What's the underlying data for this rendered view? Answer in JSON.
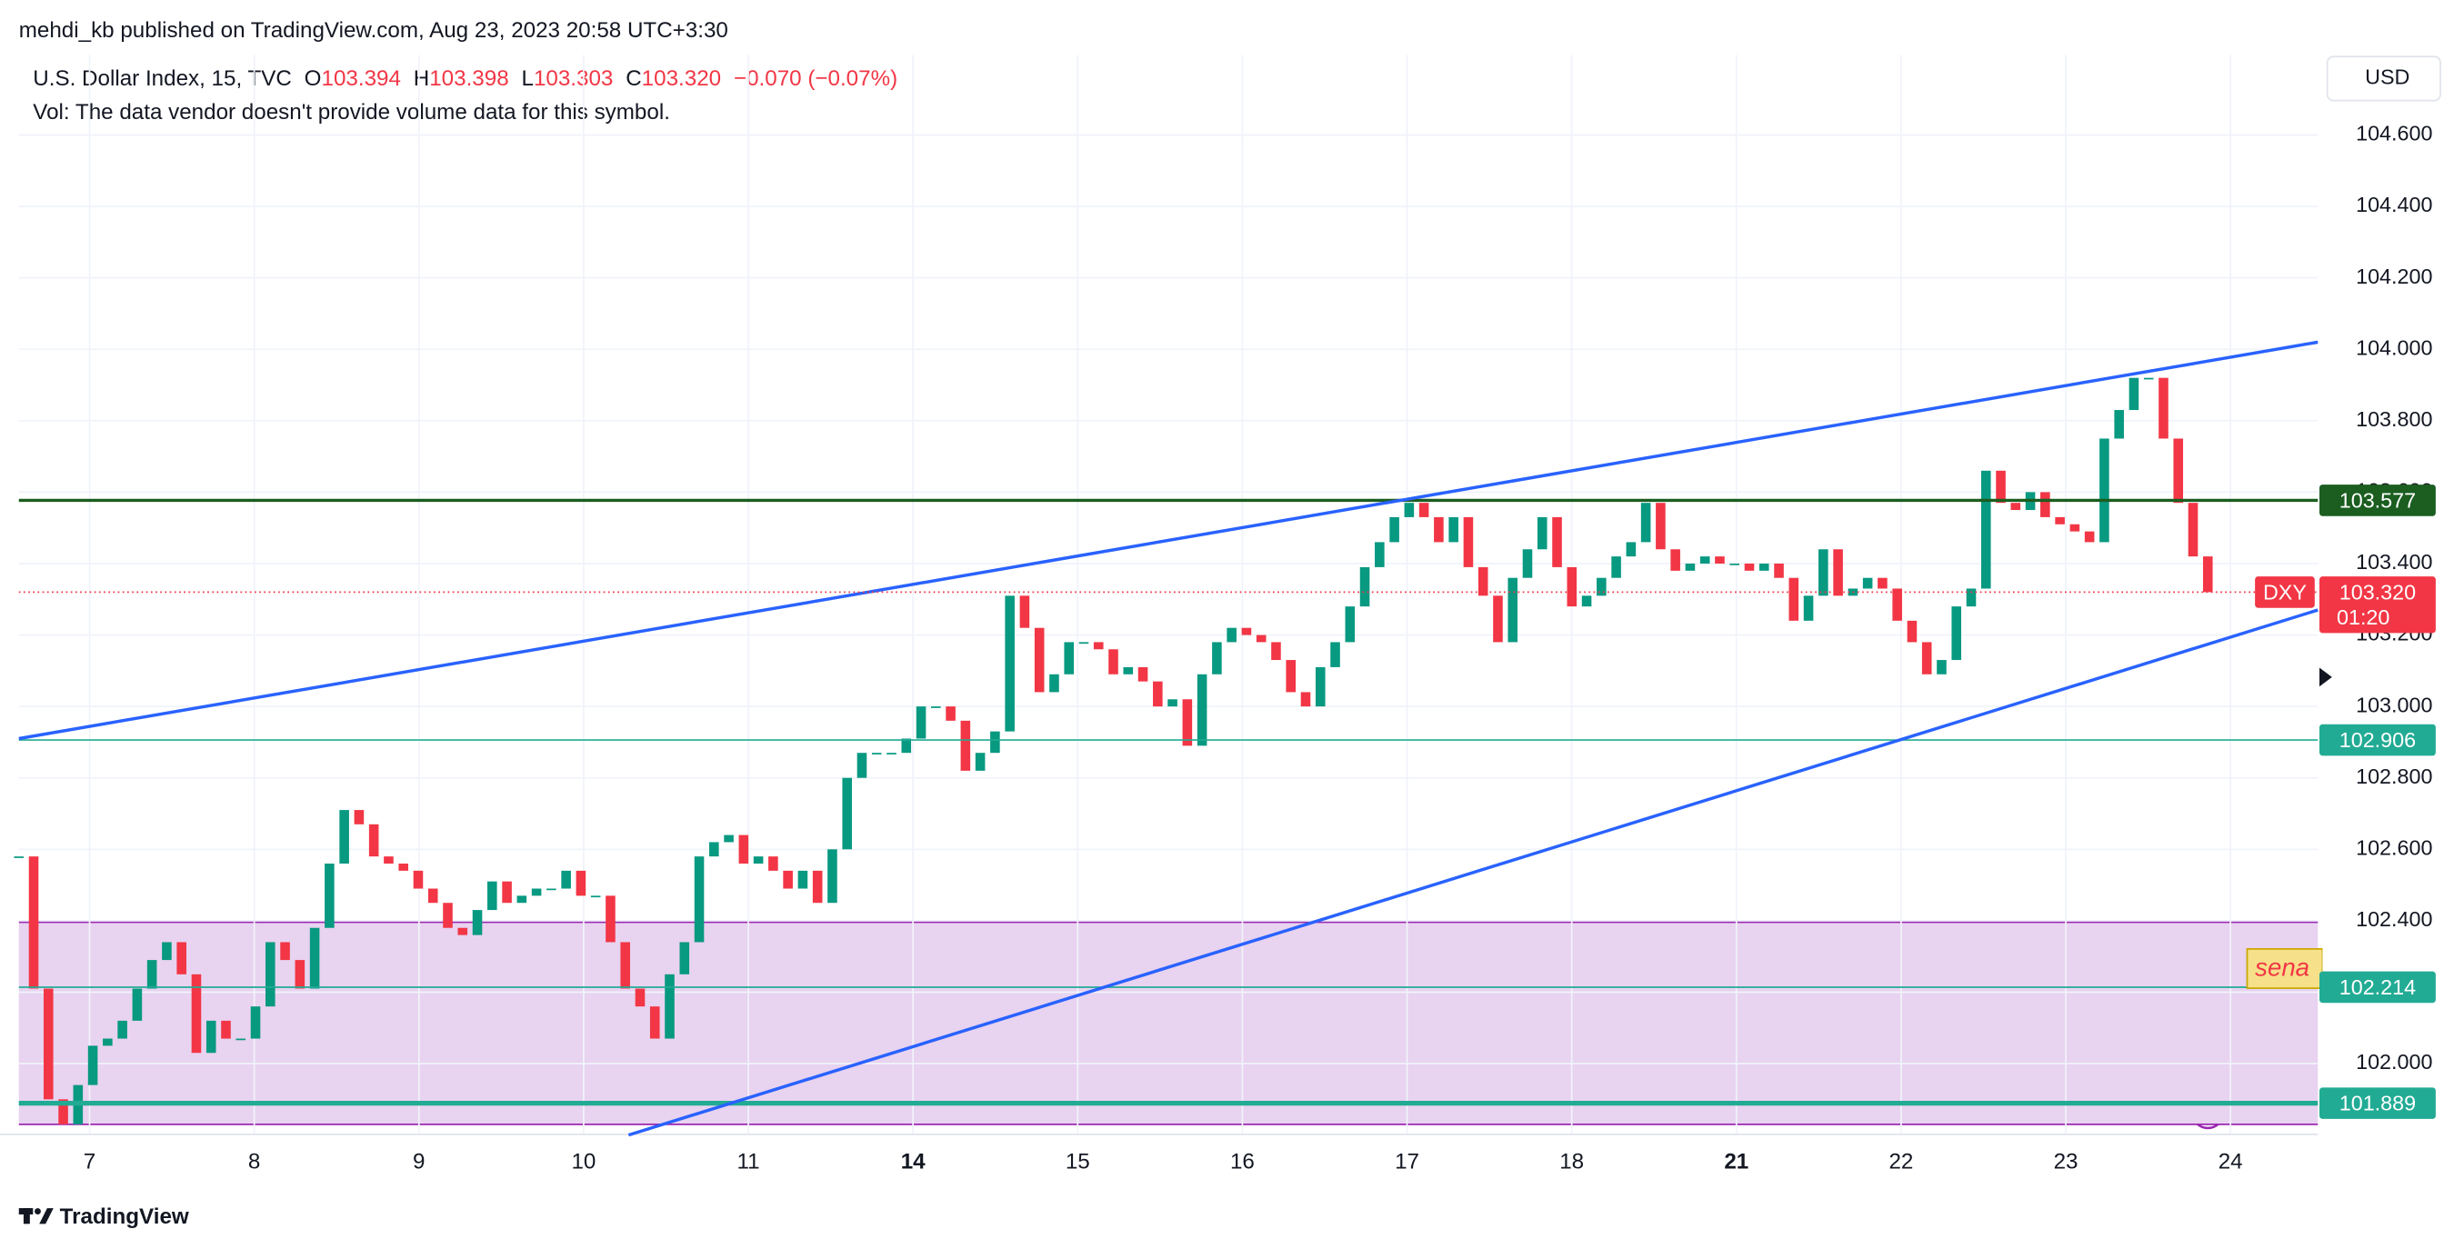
{
  "header": {
    "publisher": "mehdi_kb published on TradingView.com, Aug 23, 2023 20:58 UTC+3:30",
    "symbol": "U.S. Dollar Index, 15, TVC",
    "ohlc": [
      {
        "key": "O",
        "value": 103.394
      },
      {
        "key": "H",
        "value": 103.398
      },
      {
        "key": "L",
        "value": 103.303
      },
      {
        "key": "C",
        "value": 103.32,
        "label": "103.320"
      }
    ],
    "change": "−0.070 (−0.07%)",
    "volume_note": "Vol: The data vendor doesn't provide volume data for this symbol.",
    "currency": "USD"
  },
  "chart_data": {
    "type": "candlestick",
    "values": [
      102.58,
      102.21,
      101.9,
      101.83,
      101.94,
      102.05,
      102.07,
      102.12,
      102.21,
      102.29,
      102.34,
      102.25,
      102.03,
      102.12,
      102.07,
      102.07,
      102.16,
      102.34,
      102.29,
      102.21,
      102.38,
      102.56,
      102.71,
      102.67,
      102.58,
      102.56,
      102.54,
      102.49,
      102.45,
      102.38,
      102.36,
      102.43,
      102.51,
      102.45,
      102.47,
      102.49,
      102.49,
      102.54,
      102.47,
      102.47,
      102.34,
      102.21,
      102.16,
      102.07,
      102.25,
      102.34,
      102.58,
      102.62,
      102.64,
      102.56,
      102.58,
      102.54,
      102.49,
      102.54,
      102.45,
      102.6,
      102.8,
      102.87,
      102.87,
      102.87,
      102.91,
      103.0,
      103.0,
      102.96,
      102.82,
      102.87,
      102.93,
      103.31,
      103.22,
      103.04,
      103.09,
      103.18,
      103.18,
      103.16,
      103.09,
      103.11,
      103.07,
      103.0,
      103.02,
      102.89,
      103.09,
      103.18,
      103.22,
      103.2,
      103.18,
      103.13,
      103.04,
      103.0,
      103.11,
      103.18,
      103.28,
      103.39,
      103.46,
      103.53,
      103.57,
      103.53,
      103.46,
      103.53,
      103.39,
      103.31,
      103.18,
      103.36,
      103.44,
      103.53,
      103.39,
      103.28,
      103.31,
      103.36,
      103.42,
      103.46,
      103.57,
      103.44,
      103.38,
      103.4,
      103.42,
      103.4,
      103.4,
      103.38,
      103.4,
      103.36,
      103.24,
      103.31,
      103.44,
      103.31,
      103.33,
      103.36,
      103.33,
      103.24,
      103.18,
      103.09,
      103.13,
      103.28,
      103.33,
      103.66,
      103.57,
      103.55,
      103.6,
      103.53,
      103.51,
      103.49,
      103.46,
      103.75,
      103.83,
      103.92,
      103.92,
      103.75,
      103.57,
      103.42,
      103.32
    ],
    "up_color": "#089981",
    "down_color": "#f23645",
    "ylim": [
      101.802,
      104.824
    ],
    "yticks": [
      {
        "value": 102.0,
        "label": "102.000"
      },
      {
        "value": 102.2,
        "label": "102.200"
      },
      {
        "value": 102.4,
        "label": "102.400"
      },
      {
        "value": 102.6,
        "label": "102.600"
      },
      {
        "value": 102.8,
        "label": "102.800"
      },
      {
        "value": 103.0,
        "label": "103.000"
      },
      {
        "value": 103.2,
        "label": "103.200"
      },
      {
        "value": 103.4,
        "label": "103.400"
      },
      {
        "value": 103.6,
        "label": "103.600"
      },
      {
        "value": 103.8,
        "label": "103.800"
      },
      {
        "value": 104.0,
        "label": "104.000"
      },
      {
        "value": 104.2,
        "label": "104.200"
      },
      {
        "value": 104.4,
        "label": "104.400"
      },
      {
        "value": 104.6,
        "label": "104.600"
      }
    ],
    "x_labels": [
      "7",
      "8",
      "9",
      "10",
      "11",
      "14",
      "15",
      "16",
      "17",
      "18",
      "21",
      "22",
      "23",
      "24"
    ],
    "grid": true,
    "zone": {
      "range": [
        101.83,
        102.396
      ],
      "color": "#e8d3f0",
      "border": "#9c27b0"
    },
    "levels": [
      {
        "value": 103.577,
        "color": "#1b5e20",
        "width": 2
      },
      {
        "value": 102.906,
        "color": "#22ab94",
        "width": 1
      },
      {
        "value": 102.214,
        "color": "#22ab94",
        "width": 1
      },
      {
        "value": 101.889,
        "color": "#22ab94",
        "width": 3
      }
    ],
    "trendlines": [
      {
        "values": [
          102.91,
          104.02
        ]
      },
      {
        "values": [
          101.8,
          103.27
        ]
      }
    ],
    "trendline_color": "#2962ff",
    "last_price": {
      "symbol": "DXY",
      "value": 103.32,
      "label": "103.320",
      "countdown": "01:20",
      "color": "#f23645"
    },
    "annotation": "sena"
  },
  "footer": {
    "brand": "TradingView"
  }
}
